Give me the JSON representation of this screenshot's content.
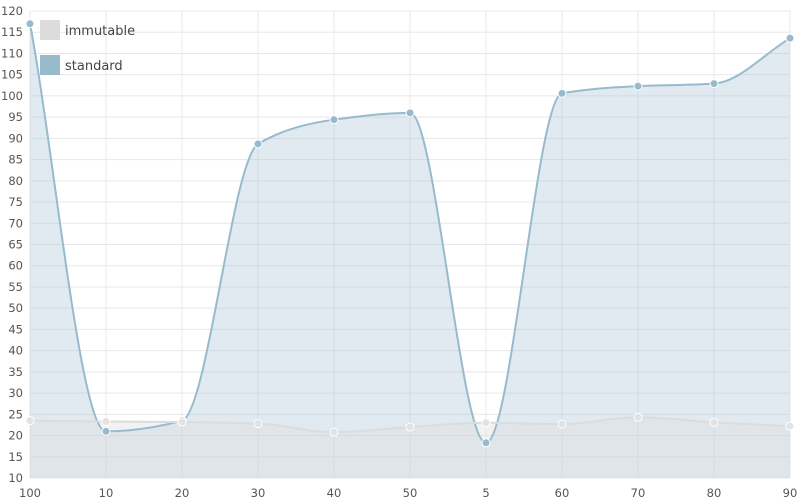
{
  "chart_data": {
    "type": "area",
    "categories": [
      "100",
      "10",
      "20",
      "30",
      "40",
      "50",
      "5",
      "60",
      "70",
      "80",
      "90"
    ],
    "series": [
      {
        "name": "immutable",
        "values": [
          23.5,
          23.3,
          23.2,
          22.8,
          20.8,
          22.0,
          23.0,
          22.7,
          24.3,
          23.1,
          22.2
        ],
        "color": "#dcdcdc"
      },
      {
        "name": "standard",
        "values": [
          117,
          21,
          23.5,
          88.7,
          94.4,
          96.0,
          18.3,
          100.6,
          102.3,
          102.9,
          113.6
        ],
        "color": "#97bbcd"
      }
    ],
    "y_ticks": [
      "10",
      "15",
      "20",
      "25",
      "30",
      "35",
      "40",
      "45",
      "50",
      "55",
      "60",
      "65",
      "70",
      "75",
      "80",
      "85",
      "90",
      "95",
      "100",
      "105",
      "110",
      "115",
      "120"
    ],
    "ylim": [
      10,
      120
    ],
    "grid": true,
    "legend_position": "top-left",
    "title": "",
    "xlabel": "",
    "ylabel": ""
  }
}
